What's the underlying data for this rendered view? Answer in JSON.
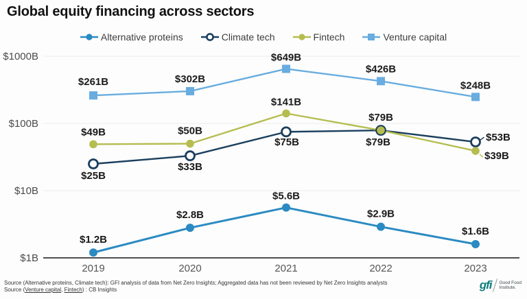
{
  "title": "Global equity financing across sectors",
  "legend": {
    "items": [
      {
        "id": "alternative-proteins",
        "label": "Alternative proteins",
        "color": "#2b8ac2",
        "marker": "dot"
      },
      {
        "id": "climate-tech",
        "label": "Climate tech",
        "color": "#1b3f5e",
        "marker": "open-dot"
      },
      {
        "id": "fintech",
        "label": "Fintech",
        "color": "#b5bd50",
        "marker": "dot"
      },
      {
        "id": "venture-capital",
        "label": "Venture capital",
        "color": "#69acdf",
        "marker": "square"
      }
    ]
  },
  "chart_data": {
    "type": "line",
    "y_scale": "log10",
    "title": "Global equity financing across sectors",
    "x": [
      "2019",
      "2020",
      "2021",
      "2022",
      "2023"
    ],
    "y_ticks": [
      {
        "value": 1,
        "label": "$1B"
      },
      {
        "value": 10,
        "label": "$10B"
      },
      {
        "value": 100,
        "label": "$100B"
      },
      {
        "value": 1000,
        "label": "$1000B"
      }
    ],
    "ylim": [
      1,
      1000
    ],
    "grid": true,
    "legend_position": "top",
    "series": [
      {
        "name": "Venture capital",
        "color": "#69acdf",
        "marker": "square",
        "line_width": 2.4,
        "values": [
          261,
          302,
          649,
          426,
          248
        ],
        "labels": [
          "$261B",
          "$302B",
          "$649B",
          "$426B",
          "$248B"
        ],
        "label_layout": [
          [
            0,
            -15,
            "middle"
          ],
          [
            0,
            -13,
            "middle"
          ],
          [
            0,
            -12,
            "middle"
          ],
          [
            0,
            -13,
            "middle"
          ],
          [
            0,
            -12,
            "middle"
          ]
        ]
      },
      {
        "name": "Climate tech",
        "color": "#1b3f5e",
        "marker": "open-circle",
        "line_width": 2.4,
        "values": [
          25,
          33,
          75,
          79,
          53
        ],
        "labels": [
          "$25B",
          "$33B",
          "$75B",
          "$79B",
          "$53B"
        ],
        "label_layout": [
          [
            0,
            22,
            "middle"
          ],
          [
            0,
            21,
            "middle"
          ],
          [
            1,
            20,
            "middle"
          ],
          [
            -4,
            22,
            "middle"
          ],
          [
            15,
            -2,
            "start",
            "leader-up"
          ]
        ]
      },
      {
        "name": "Fintech",
        "color": "#b5bd50",
        "marker": "circle",
        "line_width": 2.4,
        "values": [
          49,
          50,
          141,
          79,
          39
        ],
        "labels": [
          "$49B",
          "$50B",
          "$141B",
          "$79B",
          "$39B"
        ],
        "label_layout": [
          [
            0,
            -13,
            "middle"
          ],
          [
            0,
            -14,
            "middle"
          ],
          [
            0,
            -12,
            "middle"
          ],
          [
            0,
            -14,
            "middle"
          ],
          [
            13,
            12,
            "start",
            "leader-down"
          ]
        ]
      },
      {
        "name": "Alternative proteins",
        "color": "#2b8ac2",
        "marker": "circle",
        "line_width": 3,
        "values": [
          1.2,
          2.8,
          5.6,
          2.9,
          1.6
        ],
        "labels": [
          "$1.2B",
          "$2.8B",
          "$5.6B",
          "$2.9B",
          "$1.6B"
        ],
        "label_layout": [
          [
            0,
            -14,
            "middle"
          ],
          [
            0,
            -14,
            "middle"
          ],
          [
            0,
            -12,
            "middle"
          ],
          [
            0,
            -14,
            "middle"
          ],
          [
            0,
            -14,
            "middle"
          ]
        ]
      }
    ]
  },
  "footer": {
    "source_line1": "Source (Alternative proteins, Climate tech): GFI analysis of data from Net Zero Insights; Aggregated data has not been reviewed by Net Zero Insights analysts",
    "source_line2_parts": [
      {
        "t": "Source ("
      },
      {
        "t": "Venture capital",
        "link": true
      },
      {
        "t": ", "
      },
      {
        "t": "Fintech",
        "link": true
      },
      {
        "t": ") : CB Insights"
      }
    ]
  },
  "logo": {
    "mark": "gfi",
    "name_line1": "Good Food",
    "name_line2": "Institute."
  },
  "style": {
    "grid_color": "#ebebeb",
    "axis_color": "#4f4f4f",
    "background": "#fdfdfd"
  }
}
